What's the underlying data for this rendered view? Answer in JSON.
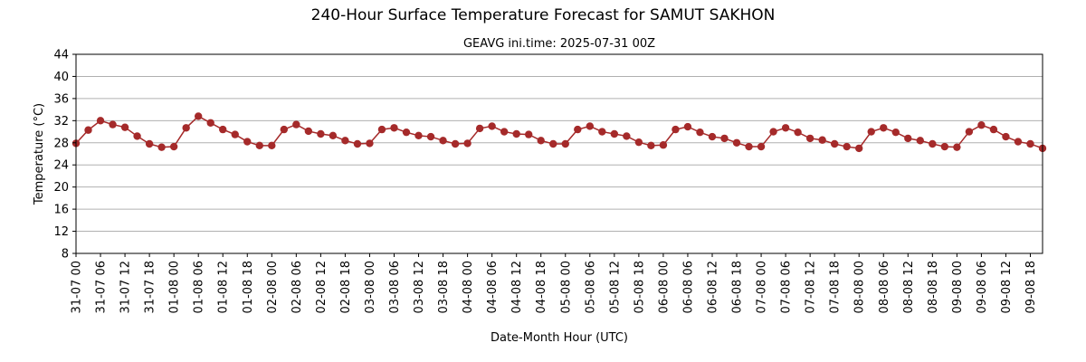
{
  "chart_data": {
    "type": "line",
    "title": "240-Hour Surface Temperature Forecast for SAMUT SAKHON",
    "subtitle": "GEAVG ini.time: 2025-07-31 00Z",
    "xlabel": "Date-Month Hour (UTC)",
    "ylabel": "Temperature (°C)",
    "ylim": [
      8,
      44
    ],
    "y_ticks": [
      8,
      12,
      16,
      20,
      24,
      28,
      32,
      36,
      40,
      44
    ],
    "grid": "horizontal",
    "x_step_hours": 3,
    "x_tick_labels": [
      "31-07 00",
      "31-07 06",
      "31-07 12",
      "31-07 18",
      "01-08 00",
      "01-08 06",
      "01-08 12",
      "01-08 18",
      "02-08 00",
      "02-08 06",
      "02-08 12",
      "02-08 18",
      "03-08 00",
      "03-08 06",
      "03-08 12",
      "03-08 18",
      "04-08 00",
      "04-08 06",
      "04-08 12",
      "04-08 18",
      "05-08 00",
      "05-08 06",
      "05-08 12",
      "05-08 18",
      "06-08 00",
      "06-08 06",
      "06-08 12",
      "06-08 18",
      "07-08 00",
      "07-08 06",
      "07-08 12",
      "07-08 18",
      "08-08 00",
      "08-08 06",
      "08-08 12",
      "08-08 18",
      "09-08 00",
      "09-08 06",
      "09-08 12",
      "09-08 18"
    ],
    "series": [
      {
        "color": "#a52a2a",
        "values": [
          27.9,
          30.3,
          32.0,
          31.3,
          30.8,
          29.2,
          27.8,
          27.2,
          27.3,
          30.7,
          32.8,
          31.6,
          30.4,
          29.5,
          28.2,
          27.5,
          27.5,
          30.4,
          31.3,
          30.1,
          29.6,
          29.3,
          28.4,
          27.8,
          27.9,
          30.4,
          30.7,
          29.9,
          29.3,
          29.1,
          28.4,
          27.8,
          27.9,
          30.6,
          31.0,
          30.0,
          29.6,
          29.5,
          28.4,
          27.8,
          27.8,
          30.4,
          31.0,
          30.0,
          29.6,
          29.2,
          28.1,
          27.5,
          27.6,
          30.4,
          30.9,
          29.9,
          29.1,
          28.8,
          28.0,
          27.3,
          27.3,
          30.0,
          30.7,
          29.9,
          28.8,
          28.5,
          27.8,
          27.3,
          27.0,
          30.0,
          30.7,
          29.9,
          28.8,
          28.4,
          27.8,
          27.3,
          27.2,
          30.0,
          31.2,
          30.4,
          29.1,
          28.2,
          27.8,
          27.0
        ]
      }
    ]
  }
}
